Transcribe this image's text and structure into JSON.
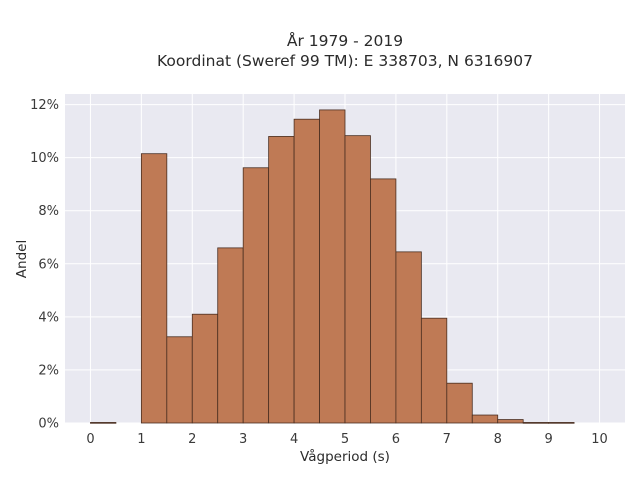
{
  "chart_data": {
    "type": "bar",
    "title": "År 1979 - 2019",
    "subtitle": "Koordinat (Sweref 99 TM): E 338703, N 6316907",
    "xlabel": "Vågperiod (s)",
    "ylabel": "Andel",
    "xlim": [
      -0.5,
      10.5
    ],
    "ylim": [
      0,
      12.4
    ],
    "x_ticks": [
      0,
      1,
      2,
      3,
      4,
      5,
      6,
      7,
      8,
      9,
      10
    ],
    "y_ticks": [
      0,
      2,
      4,
      6,
      8,
      10,
      12
    ],
    "y_tick_suffix": "%",
    "grid": true,
    "bar_color": "#bf7a55",
    "edge_color": "#4a2e20",
    "background": "#e9e9f1",
    "bins": [
      {
        "x0": 0.0,
        "x1": 0.5,
        "value": 0.02
      },
      {
        "x0": 1.0,
        "x1": 1.5,
        "value": 10.15
      },
      {
        "x0": 1.5,
        "x1": 2.0,
        "value": 3.25
      },
      {
        "x0": 2.0,
        "x1": 2.5,
        "value": 4.1
      },
      {
        "x0": 2.5,
        "x1": 3.0,
        "value": 6.6
      },
      {
        "x0": 3.0,
        "x1": 3.5,
        "value": 9.62
      },
      {
        "x0": 3.5,
        "x1": 4.0,
        "value": 10.8
      },
      {
        "x0": 4.0,
        "x1": 4.5,
        "value": 11.45
      },
      {
        "x0": 4.5,
        "x1": 5.0,
        "value": 11.8
      },
      {
        "x0": 5.0,
        "x1": 5.5,
        "value": 10.83
      },
      {
        "x0": 5.5,
        "x1": 6.0,
        "value": 9.2
      },
      {
        "x0": 6.0,
        "x1": 6.5,
        "value": 6.45
      },
      {
        "x0": 6.5,
        "x1": 7.0,
        "value": 3.95
      },
      {
        "x0": 7.0,
        "x1": 7.5,
        "value": 1.5
      },
      {
        "x0": 7.5,
        "x1": 8.0,
        "value": 0.3
      },
      {
        "x0": 8.0,
        "x1": 8.5,
        "value": 0.13
      },
      {
        "x0": 8.5,
        "x1": 9.0,
        "value": 0.02
      },
      {
        "x0": 9.0,
        "x1": 9.5,
        "value": 0.02
      }
    ]
  }
}
